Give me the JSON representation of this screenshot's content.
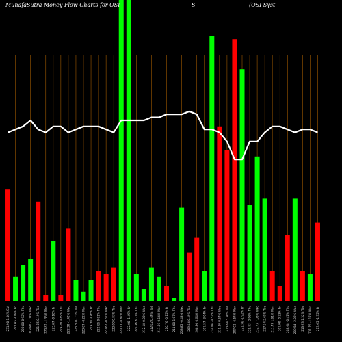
{
  "chart_data": {
    "type": "bar",
    "title": "MunafaSutra  Money Flow  Charts for OSI",
    "subtitle_left": "S",
    "subtitle_right": "(OSI Syst",
    "grid": "vertical",
    "ylim": [
      0,
      100
    ],
    "colors": {
      "up": "#00ff00",
      "down": "#ff0000",
      "line": "#ffffff",
      "grid": "#a05a00",
      "background": "#000000",
      "text": "#ffffff"
    },
    "categories": [
      "Sat 18 Nov 2023 1.46%",
      "Fri 17 Nov 2023 3.19%",
      "Thu 16 Nov 2023 0.92%",
      "Wed 15 Nov 2023 -1.07%",
      "Tue 14 Nov 2023 0.15%",
      "Mon 13 Nov 2023 -1.36%",
      "Fri 10 Nov 2023 -0.18%",
      "Thu 09 Nov 2023 0.89%",
      "Wed 08 Nov 2023 -1.42%",
      "Tue 07 Nov 2023 0.73%",
      "Mon 06 Nov 2023 -0.22%",
      "Fri 03 Nov 2023 0.76%",
      "Thu 02 Nov 2023 0.81%",
      "Wed 01 Nov 2023 -0.51%",
      "Tue 31 Oct 2023 0.83%",
      "Mon 30 Oct 2023 -0.82%",
      "Fri 27 Oct 2023 -1.49%",
      "Thu 26 Oct 2023 6.21%",
      "Wed 25 Oct 2023 0.08%",
      "Tue 24 Oct 2023 0.46%",
      "Mon 23 Oct 2023 0.14%",
      "Fri 20 Oct 2023 -0.15%",
      "Thu 19 Oct 2023 1.07%",
      "Wed 18 Oct 2023 -0.48%",
      "Tue 17 Oct 2023 0.45%",
      "Mon 16 Oct 2023 0.64%",
      "Fri 13 Oct 2023 -3.04%",
      "Thu 12 Oct 2023 -0.52%",
      "Wed 11 Oct 2023 0.64%",
      "Tue 10 Oct 2023 3.30%",
      "Mon 09 Oct 2023 -6.54%",
      "Fri 06 Oct 2023 -1.92%",
      "Thu 05 Oct 2023 -2.96%",
      "Wed 04 Oct 2023 7.08%",
      "Tue 03 Oct 2023 2.65%",
      "Mon 02 Oct 2023 1.81%",
      "Fri 29 Sep 2023 -0.33%",
      "Thu 28 Sep 2023 -0.41%",
      "Wed 27 Sep 2023 -2.06%",
      "Tue 26 Sep 2023 1.32%",
      "Mon 25 Sep 2023 -1.17%",
      "Fri 22 Sep 2023 -1.35%"
    ],
    "x_labels": [
      "231.90 1.46% Sat",
      "227.85 3.19% Fri",
      "220.80 0.92% Thu",
      "218.80 -1.07% Wed",
      "221.15 0.15% Tue",
      "220.82 -1.36% Mon",
      "223.87 -0.18% Fri",
      "224.28 0.89% Thu",
      "222.30 -1.42% Wed",
      "225.50 0.73% Tue",
      "223.87 -0.22% Mon",
      "224.36 0.76% Fri",
      "222.66 0.81% Thu",
      "220.87 -0.51% Wed",
      "222.00 0.83% Tue",
      "220.17 -0.82% Mon",
      "222.00 -1.49% Fri",
      "225.36 6.21% Thu",
      "212.18 0.08% Wed",
      "212.02 0.46% Tue",
      "211.06 0.14% Mon",
      "210.76 -0.15% Fri",
      "211.08 1.07% Thu",
      "208.85 -0.48% Wed",
      "209.84 0.45% Tue",
      "208.90 0.64% Mon",
      "207.57 -3.04% Fri",
      "214.08 -0.52% Thu",
      "215.20 0.64% Wed",
      "213.84 3.30% Tue",
      "207.01 -6.54% Mon",
      "221.50 -1.92% Fri",
      "225.83 -2.96% Thu",
      "232.73 7.08% Wed",
      "217.34 2.65% Tue",
      "211.73 1.81% Mon",
      "207.99 -0.33% Fri",
      "208.68 -0.41% Thu",
      "209.54 -2.06% Wed",
      "213.93 1.32% Tue",
      "211.15 -1.17% Mon",
      "213.65 -1.35% Fri"
    ],
    "series": [
      {
        "type": "bar",
        "values": [
          37,
          8,
          12,
          14,
          33,
          2,
          20,
          2,
          24,
          7,
          3,
          7,
          10,
          9,
          11,
          100,
          100,
          9,
          4,
          11,
          8,
          5,
          1,
          31,
          16,
          21,
          10,
          88,
          58,
          50,
          87,
          77,
          32,
          48,
          34,
          10,
          5,
          22,
          34,
          10,
          9,
          26
        ],
        "direction": [
          "down",
          "up",
          "up",
          "up",
          "down",
          "down",
          "up",
          "down",
          "down",
          "up",
          "up",
          "up",
          "down",
          "down",
          "down",
          "up",
          "up",
          "up",
          "up",
          "up",
          "up",
          "down",
          "up",
          "up",
          "down",
          "down",
          "up",
          "up",
          "down",
          "down",
          "down",
          "up",
          "up",
          "up",
          "up",
          "down",
          "down",
          "down",
          "up",
          "down",
          "up",
          "down"
        ]
      },
      {
        "type": "line",
        "values": [
          56,
          57,
          58,
          60,
          57,
          56,
          58,
          58,
          56,
          57,
          58,
          58,
          58,
          57,
          56,
          60,
          60,
          60,
          60,
          61,
          61,
          62,
          62,
          62,
          63,
          62,
          57,
          57,
          56,
          53,
          47,
          47,
          53,
          53,
          56,
          58,
          58,
          57,
          56,
          57,
          57,
          56
        ]
      }
    ]
  }
}
